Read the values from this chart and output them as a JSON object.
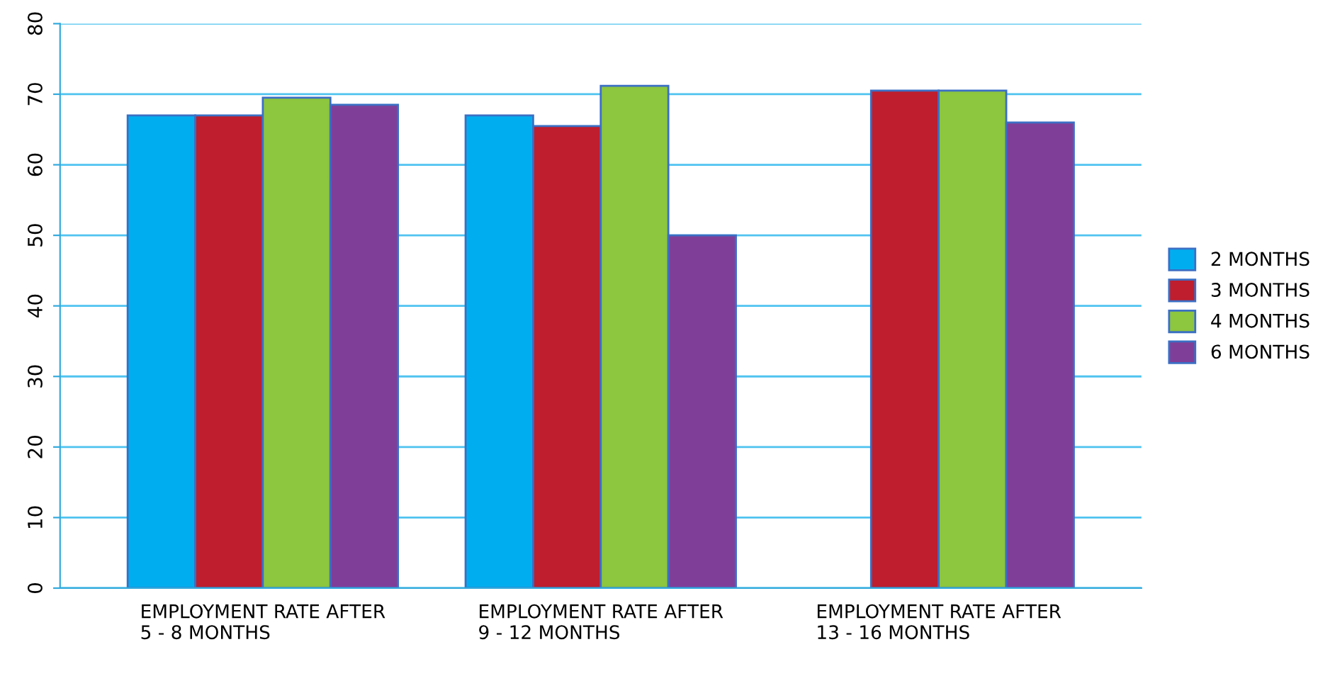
{
  "chart_data": {
    "type": "bar",
    "categories": [
      "EMPLOYMENT RATE AFTER\n5 - 8 MONTHS",
      "EMPLOYMENT RATE AFTER\n9 - 12 MONTHS",
      "EMPLOYMENT RATE AFTER\n13 - 16 MONTHS"
    ],
    "series": [
      {
        "name": "2 MONTHS",
        "color": "#00aeef",
        "values": [
          67,
          67,
          null
        ]
      },
      {
        "name": "3 MONTHS",
        "color": "#be1e2d",
        "values": [
          67,
          65.5,
          70.5
        ]
      },
      {
        "name": "4 MONTHS",
        "color": "#8dc63f",
        "values": [
          69.5,
          71.2,
          70.5
        ]
      },
      {
        "name": "6 MONTHS",
        "color": "#7f3f98",
        "values": [
          68.5,
          50,
          66
        ]
      }
    ],
    "ylim": [
      0,
      80
    ],
    "yticks": [
      0,
      10,
      20,
      30,
      40,
      50,
      60,
      70,
      80
    ],
    "grid": "y",
    "legend": "right"
  }
}
